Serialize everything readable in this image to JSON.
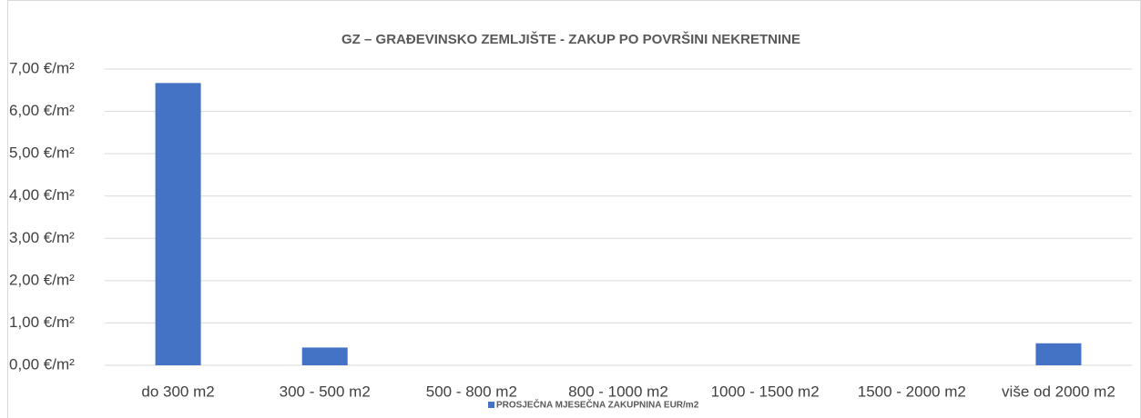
{
  "chart_data": {
    "type": "bar",
    "title": "GZ – GRAĐEVINSKO ZEMLJIŠTE - ZAKUP PO POVRŠINI NEKRETNINE",
    "categories": [
      "do 300 m2",
      "300 - 500 m2",
      "500 - 800 m2",
      "800 - 1000 m2",
      "1000 - 1500 m2",
      "1500 - 2000 m2",
      "više od 2000 m2"
    ],
    "series": [
      {
        "name": "PROSJEČNA MJESEČNA ZAKUPNINA EUR/m2",
        "color": "#4472c4",
        "values": [
          6.67,
          0.42,
          0,
          0,
          0,
          0,
          0.52
        ]
      }
    ],
    "ylim": [
      0,
      7
    ],
    "yticks": [
      {
        "value": 0,
        "label": "0,00 €/m²"
      },
      {
        "value": 1,
        "label": "1,00 €/m²"
      },
      {
        "value": 2,
        "label": "2,00 €/m²"
      },
      {
        "value": 3,
        "label": "3,00 €/m²"
      },
      {
        "value": 4,
        "label": "4,00 €/m²"
      },
      {
        "value": 5,
        "label": "5,00 €/m²"
      },
      {
        "value": 6,
        "label": "6,00 €/m²"
      },
      {
        "value": 7,
        "label": "7,00 €/m²"
      }
    ],
    "grid": true,
    "legend": "bottom"
  }
}
